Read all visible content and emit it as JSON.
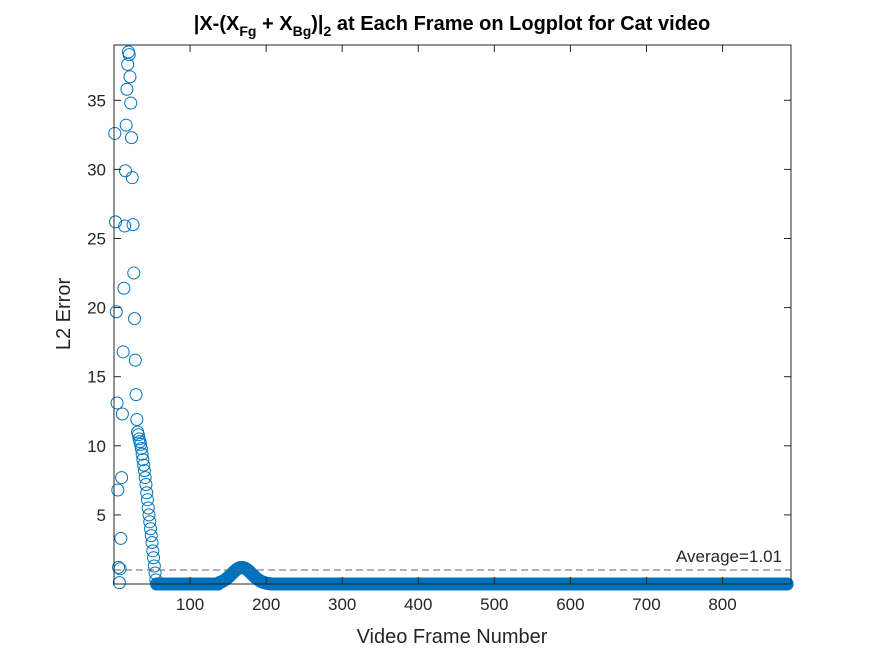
{
  "chart_data": {
    "type": "scatter",
    "title": {
      "prefix": "|X-(X",
      "sub1": "Fg",
      "mid": " + X",
      "sub2": "Bg",
      "close": ")|",
      "sub3": "2",
      "suffix": " at Each Frame on Logplot for Cat video"
    },
    "xlabel": "Video Frame Number",
    "ylabel": "L2 Error",
    "xlim": [
      0,
      890
    ],
    "ylim": [
      0,
      39
    ],
    "xticks": [
      100,
      200,
      300,
      400,
      500,
      600,
      700,
      800
    ],
    "yticks": [
      5,
      10,
      15,
      20,
      25,
      30,
      35
    ],
    "grid": false,
    "marker": "open-circle",
    "color": "#0072BD",
    "average": {
      "value": 1.01,
      "label": "Average=1.01"
    },
    "series": [
      {
        "points": [
          [
            1,
            32.6
          ],
          [
            2,
            26.2
          ],
          [
            3,
            19.7
          ],
          [
            4,
            13.1
          ],
          [
            5,
            6.8
          ],
          [
            6,
            1.2
          ],
          [
            7,
            0.1
          ],
          [
            8,
            1.1
          ],
          [
            9,
            3.3
          ],
          [
            10,
            7.7
          ],
          [
            11,
            12.3
          ],
          [
            12,
            16.8
          ],
          [
            13,
            21.4
          ],
          [
            14,
            25.9
          ],
          [
            15,
            29.9
          ],
          [
            16,
            33.2
          ],
          [
            17,
            35.8
          ],
          [
            18,
            37.6
          ],
          [
            19,
            38.5
          ],
          [
            20,
            38.3
          ],
          [
            21,
            36.7
          ],
          [
            22,
            34.8
          ],
          [
            23,
            32.3
          ],
          [
            24,
            29.4
          ],
          [
            25,
            26.0
          ],
          [
            26,
            22.5
          ],
          [
            27,
            19.2
          ],
          [
            28,
            16.2
          ],
          [
            29,
            13.7
          ],
          [
            30,
            11.9
          ],
          [
            31,
            11.0
          ],
          [
            32,
            10.8
          ],
          [
            33,
            10.5
          ],
          [
            34,
            10.3
          ],
          [
            35,
            10.1
          ],
          [
            36,
            9.8
          ],
          [
            37,
            9.4
          ],
          [
            38,
            9.0
          ],
          [
            39,
            8.6
          ],
          [
            40,
            8.2
          ],
          [
            41,
            7.7
          ],
          [
            42,
            7.2
          ],
          [
            43,
            6.6
          ],
          [
            44,
            6.1
          ],
          [
            45,
            5.5
          ],
          [
            46,
            5.0
          ],
          [
            47,
            4.5
          ],
          [
            48,
            4.0
          ],
          [
            49,
            3.5
          ],
          [
            50,
            3.0
          ],
          [
            51,
            2.4
          ],
          [
            52,
            1.9
          ],
          [
            53,
            1.3
          ],
          [
            54,
            0.8
          ],
          [
            55,
            0.3
          ],
          [
            56,
            0.0
          ]
        ],
        "baseline": {
          "from": 57,
          "to": 885,
          "value": 0.0
        },
        "bump": {
          "from": 138,
          "to": 205,
          "center": 168,
          "peak": 1.2
        }
      }
    ]
  }
}
